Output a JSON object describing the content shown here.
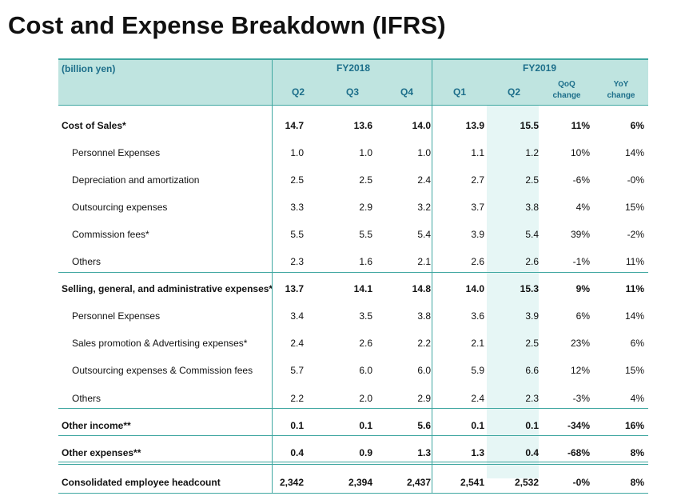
{
  "title": "Cost and Expense Breakdown (IFRS)",
  "table": {
    "unit_label": "(billion yen)",
    "groups": [
      "FY2018",
      "FY2019"
    ],
    "columns": [
      "Q2",
      "Q3",
      "Q4",
      "Q1",
      "Q2",
      "QoQ change",
      "YoY change"
    ],
    "change_headers": {
      "qoq_line1": "QoQ",
      "qoq_line2": "change",
      "yoy_line1": "YoY",
      "yoy_line2": "change"
    },
    "rows": [
      {
        "label": "Cost of Sales*",
        "bold": true,
        "values": [
          "14.7",
          "13.6",
          "14.0",
          "13.9",
          "15.5",
          "11%",
          "6%"
        ]
      },
      {
        "label": "Personnel Expenses",
        "bold": false,
        "values": [
          "1.0",
          "1.0",
          "1.0",
          "1.1",
          "1.2",
          "10%",
          "14%"
        ]
      },
      {
        "label": "Depreciation and amortization",
        "bold": false,
        "values": [
          "2.5",
          "2.5",
          "2.4",
          "2.7",
          "2.5",
          "-6%",
          "-0%"
        ]
      },
      {
        "label": "Outsourcing expenses",
        "bold": false,
        "values": [
          "3.3",
          "2.9",
          "3.2",
          "3.7",
          "3.8",
          "4%",
          "15%"
        ]
      },
      {
        "label": "Commission fees*",
        "bold": false,
        "values": [
          "5.5",
          "5.5",
          "5.4",
          "3.9",
          "5.4",
          "39%",
          "-2%"
        ]
      },
      {
        "label": "Others",
        "bold": false,
        "values": [
          "2.3",
          "1.6",
          "2.1",
          "2.6",
          "2.6",
          "-1%",
          "11%"
        ]
      },
      {
        "label": "Selling, general, and administrative expenses*",
        "bold": true,
        "values": [
          "13.7",
          "14.1",
          "14.8",
          "14.0",
          "15.3",
          "9%",
          "11%"
        ]
      },
      {
        "label": "Personnel Expenses",
        "bold": false,
        "values": [
          "3.4",
          "3.5",
          "3.8",
          "3.6",
          "3.9",
          "6%",
          "14%"
        ]
      },
      {
        "label": "Sales promotion & Advertising expenses*",
        "bold": false,
        "values": [
          "2.4",
          "2.6",
          "2.2",
          "2.1",
          "2.5",
          "23%",
          "6%"
        ]
      },
      {
        "label": "Outsourcing expenses & Commission fees",
        "bold": false,
        "values": [
          "5.7",
          "6.0",
          "6.0",
          "5.9",
          "6.6",
          "12%",
          "15%"
        ]
      },
      {
        "label": "Others",
        "bold": false,
        "values": [
          "2.2",
          "2.0",
          "2.9",
          "2.4",
          "2.3",
          "-3%",
          "4%"
        ]
      },
      {
        "label": "Other income**",
        "bold": true,
        "values": [
          "0.1",
          "0.1",
          "5.6",
          "0.1",
          "0.1",
          "-34%",
          "16%"
        ]
      },
      {
        "label": "Other expenses**",
        "bold": true,
        "values": [
          "0.4",
          "0.9",
          "1.3",
          "1.3",
          "0.4",
          "-68%",
          "8%"
        ]
      },
      {
        "label": "Consolidated employee headcount",
        "bold": true,
        "values": [
          "2,342",
          "2,394",
          "2,437",
          "2,541",
          "2,532",
          "-0%",
          "8%"
        ]
      }
    ]
  },
  "colors": {
    "header_bg": "#bfe4e0",
    "rule": "#3fa7a1",
    "highlight_col": "#e6f6f5",
    "header_text": "#1c6e8a"
  }
}
